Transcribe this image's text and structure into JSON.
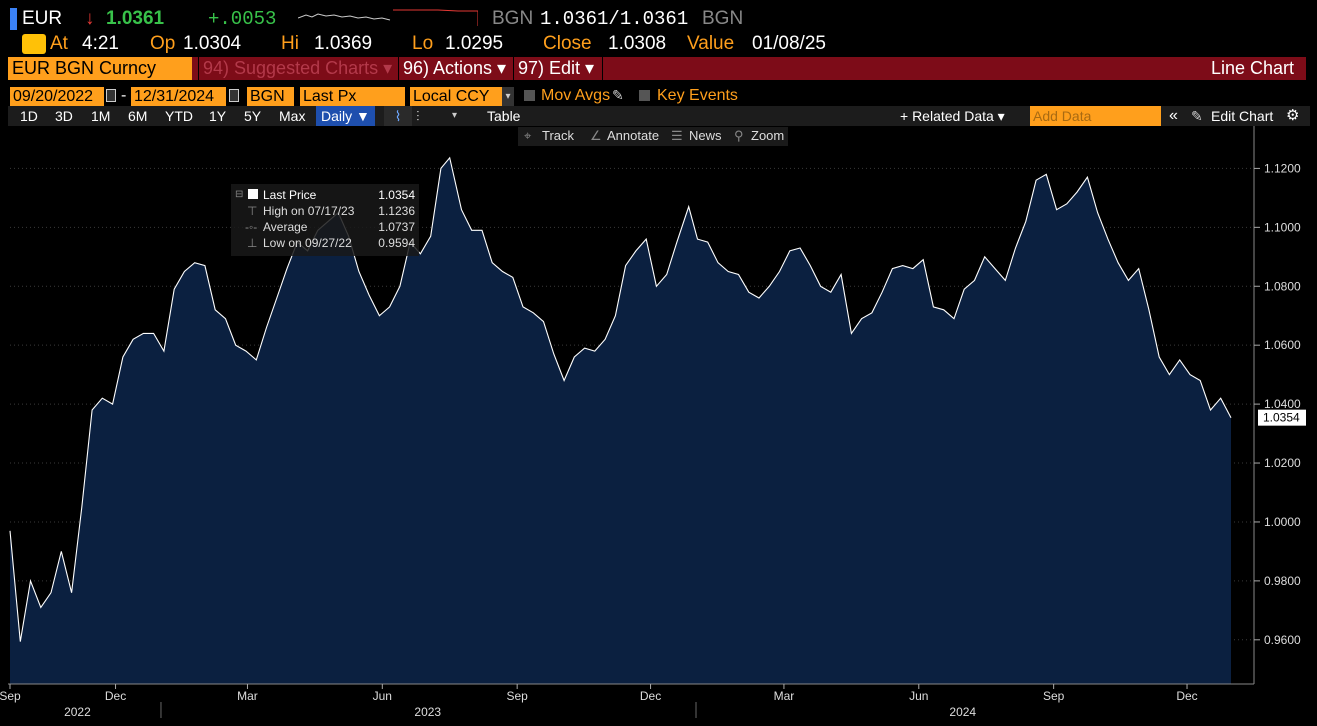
{
  "ticker": {
    "symbol": "EUR",
    "arrow": "↓",
    "price": "1.0361",
    "change": "+.0053",
    "quote_ccy": "BGN",
    "bid_ask": "1.0361/1.0361",
    "quote_ccy2": "BGN",
    "colors": {
      "up": "#38c24a",
      "down": "#e53935",
      "accent": "#ff9f1c"
    }
  },
  "stats": {
    "at_label": "At",
    "at_value": "4:21",
    "op_label": "Op",
    "op_value": "1.0304",
    "hi_label": "Hi",
    "hi_value": "1.0369",
    "lo_label": "Lo",
    "lo_value": "1.0295",
    "close_label": "Close",
    "close_value": "1.0308",
    "value_label": "Value",
    "value_date": "01/08/25"
  },
  "menubar": {
    "security": "EUR BGN Curncy",
    "suggested": "94) Suggested Charts ▾",
    "actions": "96) Actions ▾",
    "edit": "97) Edit ▾",
    "chart_type": "Line Chart"
  },
  "params": {
    "start_date": "09/20/2022",
    "dash": "-",
    "end_date": "12/31/2024",
    "currency": "BGN",
    "field": "Last Px",
    "ccy_mode": "Local CCY",
    "mov_avgs": "Mov Avgs",
    "key_events": "Key Events"
  },
  "toolbar": {
    "periods": [
      "1D",
      "3D",
      "1M",
      "6M",
      "YTD",
      "1Y",
      "5Y",
      "Max"
    ],
    "frequency": "Daily ▼",
    "table": "Table",
    "related": "+ Related Data ▾",
    "add_data_placeholder": "Add Data",
    "collapse": "«",
    "edit_chart": "Edit Chart",
    "gear_icon": "gear-icon"
  },
  "annotate_bar": {
    "track": "Track",
    "annotate": "Annotate",
    "news": "News",
    "zoom": "Zoom"
  },
  "legend": {
    "last_label": "Last Price",
    "last_value": "1.0354",
    "high_label": "High on 07/17/23",
    "high_value": "1.1236",
    "avg_label": "Average",
    "avg_value": "1.0737",
    "low_label": "Low on 09/27/22",
    "low_value": "0.9594"
  },
  "chart_data": {
    "type": "area",
    "series": [
      {
        "name": "Last Price",
        "x": [
          "2022-09-20",
          "2022-09-27",
          "2022-10-04",
          "2022-10-11",
          "2022-10-18",
          "2022-10-25",
          "2022-11-01",
          "2022-11-08",
          "2022-11-15",
          "2022-11-22",
          "2022-11-29",
          "2022-12-06",
          "2022-12-13",
          "2022-12-20",
          "2022-12-27",
          "2023-01-03",
          "2023-01-10",
          "2023-01-17",
          "2023-01-24",
          "2023-01-31",
          "2023-02-07",
          "2023-02-14",
          "2023-02-21",
          "2023-02-28",
          "2023-03-07",
          "2023-03-14",
          "2023-03-21",
          "2023-03-28",
          "2023-04-04",
          "2023-04-11",
          "2023-04-18",
          "2023-04-25",
          "2023-05-02",
          "2023-05-09",
          "2023-05-16",
          "2023-05-23",
          "2023-05-30",
          "2023-06-06",
          "2023-06-13",
          "2023-06-20",
          "2023-06-27",
          "2023-07-04",
          "2023-07-11",
          "2023-07-17",
          "2023-07-25",
          "2023-08-01",
          "2023-08-08",
          "2023-08-15",
          "2023-08-22",
          "2023-08-29",
          "2023-09-05",
          "2023-09-12",
          "2023-09-19",
          "2023-09-26",
          "2023-10-03",
          "2023-10-10",
          "2023-10-17",
          "2023-10-24",
          "2023-10-31",
          "2023-11-07",
          "2023-11-14",
          "2023-11-21",
          "2023-11-28",
          "2023-12-05",
          "2023-12-12",
          "2023-12-19",
          "2023-12-27",
          "2024-01-02",
          "2024-01-09",
          "2024-01-16",
          "2024-01-23",
          "2024-01-30",
          "2024-02-06",
          "2024-02-13",
          "2024-02-20",
          "2024-02-27",
          "2024-03-05",
          "2024-03-12",
          "2024-03-19",
          "2024-03-26",
          "2024-04-02",
          "2024-04-09",
          "2024-04-16",
          "2024-04-23",
          "2024-04-30",
          "2024-05-07",
          "2024-05-14",
          "2024-05-21",
          "2024-05-28",
          "2024-06-04",
          "2024-06-11",
          "2024-06-18",
          "2024-06-25",
          "2024-07-02",
          "2024-07-09",
          "2024-07-16",
          "2024-07-23",
          "2024-07-30",
          "2024-08-06",
          "2024-08-13",
          "2024-08-20",
          "2024-08-27",
          "2024-09-03",
          "2024-09-10",
          "2024-09-17",
          "2024-09-24",
          "2024-10-01",
          "2024-10-08",
          "2024-10-15",
          "2024-10-22",
          "2024-10-29",
          "2024-11-05",
          "2024-11-12",
          "2024-11-19",
          "2024-11-26",
          "2024-12-03",
          "2024-12-10",
          "2024-12-17",
          "2024-12-24",
          "2024-12-31"
        ],
        "values": [
          0.997,
          0.9594,
          0.98,
          0.971,
          0.976,
          0.99,
          0.976,
          1.005,
          1.038,
          1.042,
          1.04,
          1.056,
          1.062,
          1.064,
          1.064,
          1.058,
          1.079,
          1.085,
          1.088,
          1.087,
          1.072,
          1.069,
          1.06,
          1.058,
          1.055,
          1.066,
          1.076,
          1.086,
          1.095,
          1.092,
          1.099,
          1.102,
          1.105,
          1.097,
          1.085,
          1.077,
          1.07,
          1.073,
          1.08,
          1.095,
          1.091,
          1.097,
          1.12,
          1.1236,
          1.106,
          1.099,
          1.099,
          1.088,
          1.085,
          1.083,
          1.073,
          1.071,
          1.068,
          1.057,
          1.048,
          1.056,
          1.059,
          1.058,
          1.062,
          1.07,
          1.087,
          1.092,
          1.096,
          1.08,
          1.084,
          1.095,
          1.107,
          1.096,
          1.095,
          1.088,
          1.085,
          1.084,
          1.078,
          1.076,
          1.08,
          1.085,
          1.092,
          1.093,
          1.087,
          1.08,
          1.078,
          1.084,
          1.064,
          1.069,
          1.071,
          1.078,
          1.086,
          1.087,
          1.086,
          1.089,
          1.073,
          1.072,
          1.069,
          1.079,
          1.082,
          1.09,
          1.086,
          1.082,
          1.093,
          1.102,
          1.116,
          1.118,
          1.106,
          1.108,
          1.112,
          1.117,
          1.105,
          1.096,
          1.088,
          1.082,
          1.086,
          1.072,
          1.056,
          1.05,
          1.055,
          1.05,
          1.048,
          1.038,
          1.042,
          1.0354
        ]
      }
    ],
    "y_ticks": [
      "0.9600",
      "0.9800",
      "1.0000",
      "1.0200",
      "1.0400",
      "1.0600",
      "1.0800",
      "1.1000",
      "1.1200"
    ],
    "ylim": [
      0.945,
      1.131
    ],
    "x_month_labels": [
      {
        "label": "Sep",
        "date": "2022-09-20"
      },
      {
        "label": "Dec",
        "date": "2022-12-01"
      },
      {
        "label": "Mar",
        "date": "2023-03-01"
      },
      {
        "label": "Jun",
        "date": "2023-06-01"
      },
      {
        "label": "Sep",
        "date": "2023-09-01"
      },
      {
        "label": "Dec",
        "date": "2023-12-01"
      },
      {
        "label": "Mar",
        "date": "2024-03-01"
      },
      {
        "label": "Jun",
        "date": "2024-06-01"
      },
      {
        "label": "Sep",
        "date": "2024-09-01"
      },
      {
        "label": "Dec",
        "date": "2024-12-01"
      }
    ],
    "x_year_labels": [
      {
        "label": "2022",
        "date": "2022-11-05"
      },
      {
        "label": "2023",
        "date": "2023-07-02"
      },
      {
        "label": "2024",
        "date": "2024-07-01"
      }
    ],
    "x_range": [
      "2022-09-20",
      "2024-12-31"
    ],
    "last_label": "1.0354",
    "grid": true,
    "colors": {
      "fill": "#0b2040",
      "line": "#ffffff",
      "grid": "#3a3a3a"
    }
  }
}
